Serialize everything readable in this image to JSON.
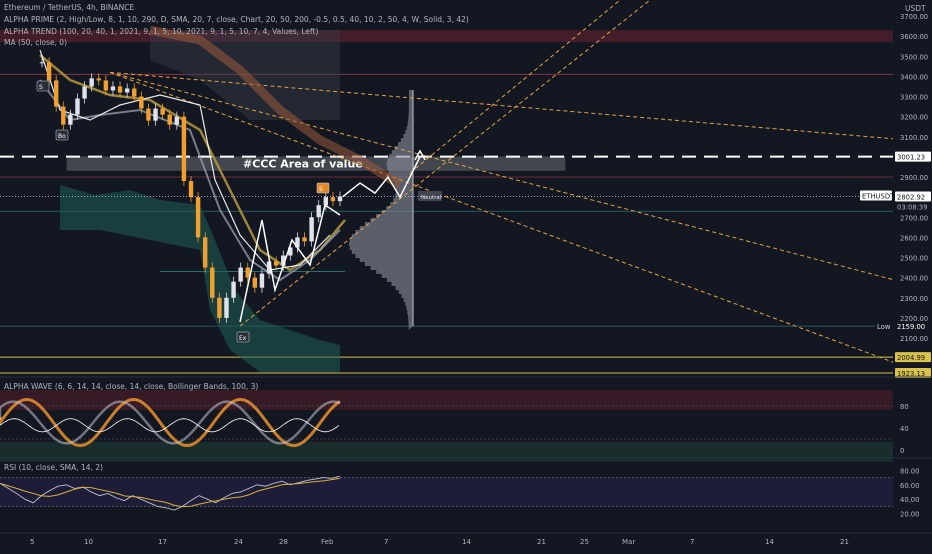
{
  "header": {
    "symbol_line": "Ethereum / TetherUS, 4h, BINANCE",
    "currency": "USDT",
    "indicators": [
      "ALPHA PRIME (2, High/Low, 8, 1, 10, 290, D, SMA, 20, 7, close, Chart, 20, 50, 200, -0.5, 0.5, 40, 10, 2, 50, 4, W, Solid, 3, 42)",
      "ALPHA TREND (100, 20, 40, 1, 2021, 9, 1, 5, 10, 2021, 9, 1, 5, 10, 7, 4, Values, Left)",
      "MA (50, close, 0)"
    ]
  },
  "pane_labels": {
    "wave": "ALPHA WAVE (6, 6, 14, 14, close, 14, close, Bollinger Bands, 100, 3)",
    "rsi": "RSI (10, close, SMA, 14, 2)"
  },
  "annotations": {
    "area_of_value": "#CCC Area of value",
    "neutral": "Neutral",
    "markers": [
      "S",
      "Bo",
      "S",
      "Ex"
    ]
  },
  "price_axis": {
    "ticks": [
      "3700.00",
      "3600.00",
      "3500.00",
      "3400.00",
      "3300.00",
      "3200.00",
      "3100.00",
      "3000.00",
      "2900.00",
      "2800.00",
      "2700.00",
      "2600.00",
      "2500.00",
      "2400.00",
      "2300.00",
      "2200.00",
      "2100.00"
    ],
    "labels": [
      {
        "text": "3001.23",
        "kind": "level"
      },
      {
        "text": "ETHUSDT",
        "kind": "symbol"
      },
      {
        "text": "2802.92",
        "kind": "price"
      },
      {
        "text": "03:08:39",
        "kind": "countdown"
      },
      {
        "text": "Low",
        "kind": "low-tag"
      },
      {
        "text": "2159.00",
        "kind": "low"
      },
      {
        "text": "2004.99",
        "kind": "yellow"
      },
      {
        "text": "1923.13",
        "kind": "yellow"
      }
    ]
  },
  "wave_axis": {
    "ticks": [
      "80",
      "40",
      "0"
    ]
  },
  "rsi_axis": {
    "ticks": [
      "80.00",
      "60.00",
      "40.00",
      "20.00"
    ]
  },
  "time_axis": {
    "ticks": [
      "5",
      "10",
      "17",
      "24",
      "28",
      "Feb",
      "7",
      "14",
      "21",
      "25",
      "Mar",
      "7",
      "14",
      "21"
    ]
  },
  "chart_data": {
    "type": "line",
    "symbol": "ETHUSDT",
    "timeframe": "4h",
    "exchange": "BINANCE",
    "ylim": [
      2000,
      3700
    ],
    "x_ticks": [
      "5",
      "10",
      "17",
      "24",
      "28",
      "Feb",
      "7",
      "14",
      "21",
      "25",
      "Mar",
      "7",
      "14",
      "21"
    ],
    "last_price": 2802.92,
    "levels": {
      "area_of_value": 3001.23,
      "low": 2159.0,
      "yellow_1": 2004.99,
      "yellow_2": 1923.13
    },
    "price_path": [
      3470,
      3380,
      3250,
      3160,
      3210,
      3290,
      3350,
      3390,
      3380,
      3330,
      3350,
      3320,
      3340,
      3300,
      3240,
      3180,
      3240,
      3210,
      3160,
      3200,
      2880,
      2800,
      2600,
      2450,
      2300,
      2200,
      2300,
      2380,
      2450,
      2400,
      2350,
      2420,
      2480,
      2460,
      2510,
      2550,
      2600,
      2580,
      2700,
      2760,
      2800,
      2780,
      2803
    ],
    "projection": [
      2803,
      2870,
      2820,
      2900,
      2800,
      2920,
      3000
    ],
    "rsi": [
      62,
      55,
      48,
      40,
      35,
      45,
      52,
      58,
      60,
      55,
      57,
      50,
      45,
      48,
      42,
      38,
      45,
      40,
      35,
      30,
      28,
      25,
      30,
      38,
      45,
      40,
      35,
      42,
      48,
      50,
      55,
      60,
      58,
      62,
      65,
      60,
      63,
      66,
      68,
      70,
      69,
      72
    ],
    "wave_oscillator_range": [
      0,
      100
    ]
  }
}
